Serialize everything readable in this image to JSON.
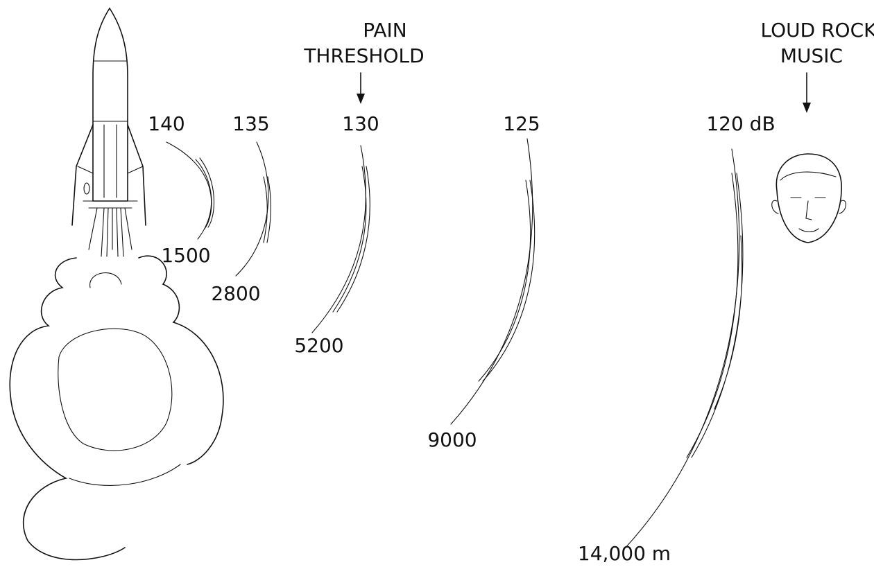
{
  "annotations": [
    {
      "lines": [
        "PAIN",
        "THRESHOLD"
      ]
    },
    {
      "lines": [
        "LOUD ROCK",
        "MUSIC"
      ]
    }
  ],
  "rings": [
    {
      "level": "140",
      "distance": "1500"
    },
    {
      "level": "135",
      "distance": "2800"
    },
    {
      "level": "130",
      "distance": "5200"
    },
    {
      "level": "125",
      "distance": "9000"
    },
    {
      "level": "120 dB",
      "distance": "14,000 m"
    }
  ]
}
